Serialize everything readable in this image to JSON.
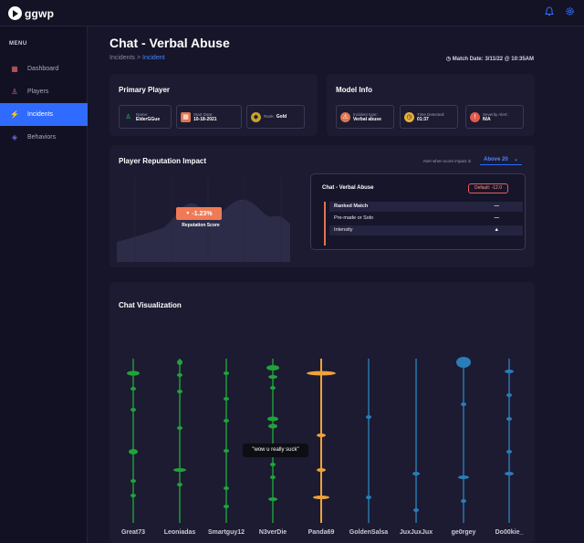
{
  "app": {
    "logo_text": "ggwp"
  },
  "header": {
    "icons": [
      "bell-icon",
      "gear-icon"
    ],
    "accent": "#2f6bff"
  },
  "sidebar": {
    "menu_title": "MENU",
    "items": [
      {
        "label": "Dashboard",
        "icon": "dashboard-icon",
        "active": false
      },
      {
        "label": "Players",
        "icon": "user-icon",
        "active": false
      },
      {
        "label": "Incidents",
        "icon": "lightning-icon",
        "active": true
      },
      {
        "label": "Behaviors",
        "icon": "layers-icon",
        "active": false
      }
    ]
  },
  "page": {
    "title": "Chat - Verbal Abuse",
    "breadcrumb": {
      "parent": "Incidents",
      "separator": ">",
      "current": "Incident"
    },
    "match_date": "Match Date: 3/11/22 @ 10:35AM"
  },
  "primary_player": {
    "title": "Primary Player",
    "name_label": "Name:",
    "name_value": "ElderGGue",
    "start_label": "Start Date:",
    "start_value": "10-18-2021",
    "rank_label": "Rank:",
    "rank_value": "Gold"
  },
  "model_info": {
    "title": "Model Info",
    "type_label": "Incident type:",
    "type_value": "Verbal abuse",
    "time_label": "Time Detected:",
    "time_value": "01:37",
    "severity_label": "Severity Alert:",
    "severity_value": "N/A"
  },
  "reputation": {
    "title": "Player Reputation Impact",
    "alert_label": "Alert when score impact is",
    "select_value": "Above 20",
    "change": "-1.23%",
    "score_label": "Reputation Score",
    "panel": {
      "title": "Chat - Verbal Abuse",
      "default_badge": "Default: -12.0",
      "rows": [
        {
          "label": "Ranked Match",
          "value": "—"
        },
        {
          "label": "Pre-made or Solo",
          "value": "—"
        },
        {
          "label": "Intensity",
          "value": "▲"
        }
      ]
    }
  },
  "chat": {
    "title": "Chat Visualization",
    "tooltip": "\"wow u really suck\"",
    "colors": {
      "Great73": "#1fa33a",
      "Leoniadas": "#1fa33a",
      "Smartguy12": "#1fa33a",
      "N3verDie": "#1fa33a",
      "Panda69": "#f0a23a",
      "GoldenSalsa": "#2a7db8",
      "JuxJuxJux": "#2a7db8",
      "ge0rgey": "#2a7db8",
      "Do00kie_": "#2a7db8"
    },
    "players": [
      "Great73",
      "Leoniadas",
      "Smartguy12",
      "N3verDie",
      "Panda69",
      "GoldenSalsa",
      "JuxJuxJux",
      "ge0rgey",
      "Do00kie_"
    ]
  }
}
